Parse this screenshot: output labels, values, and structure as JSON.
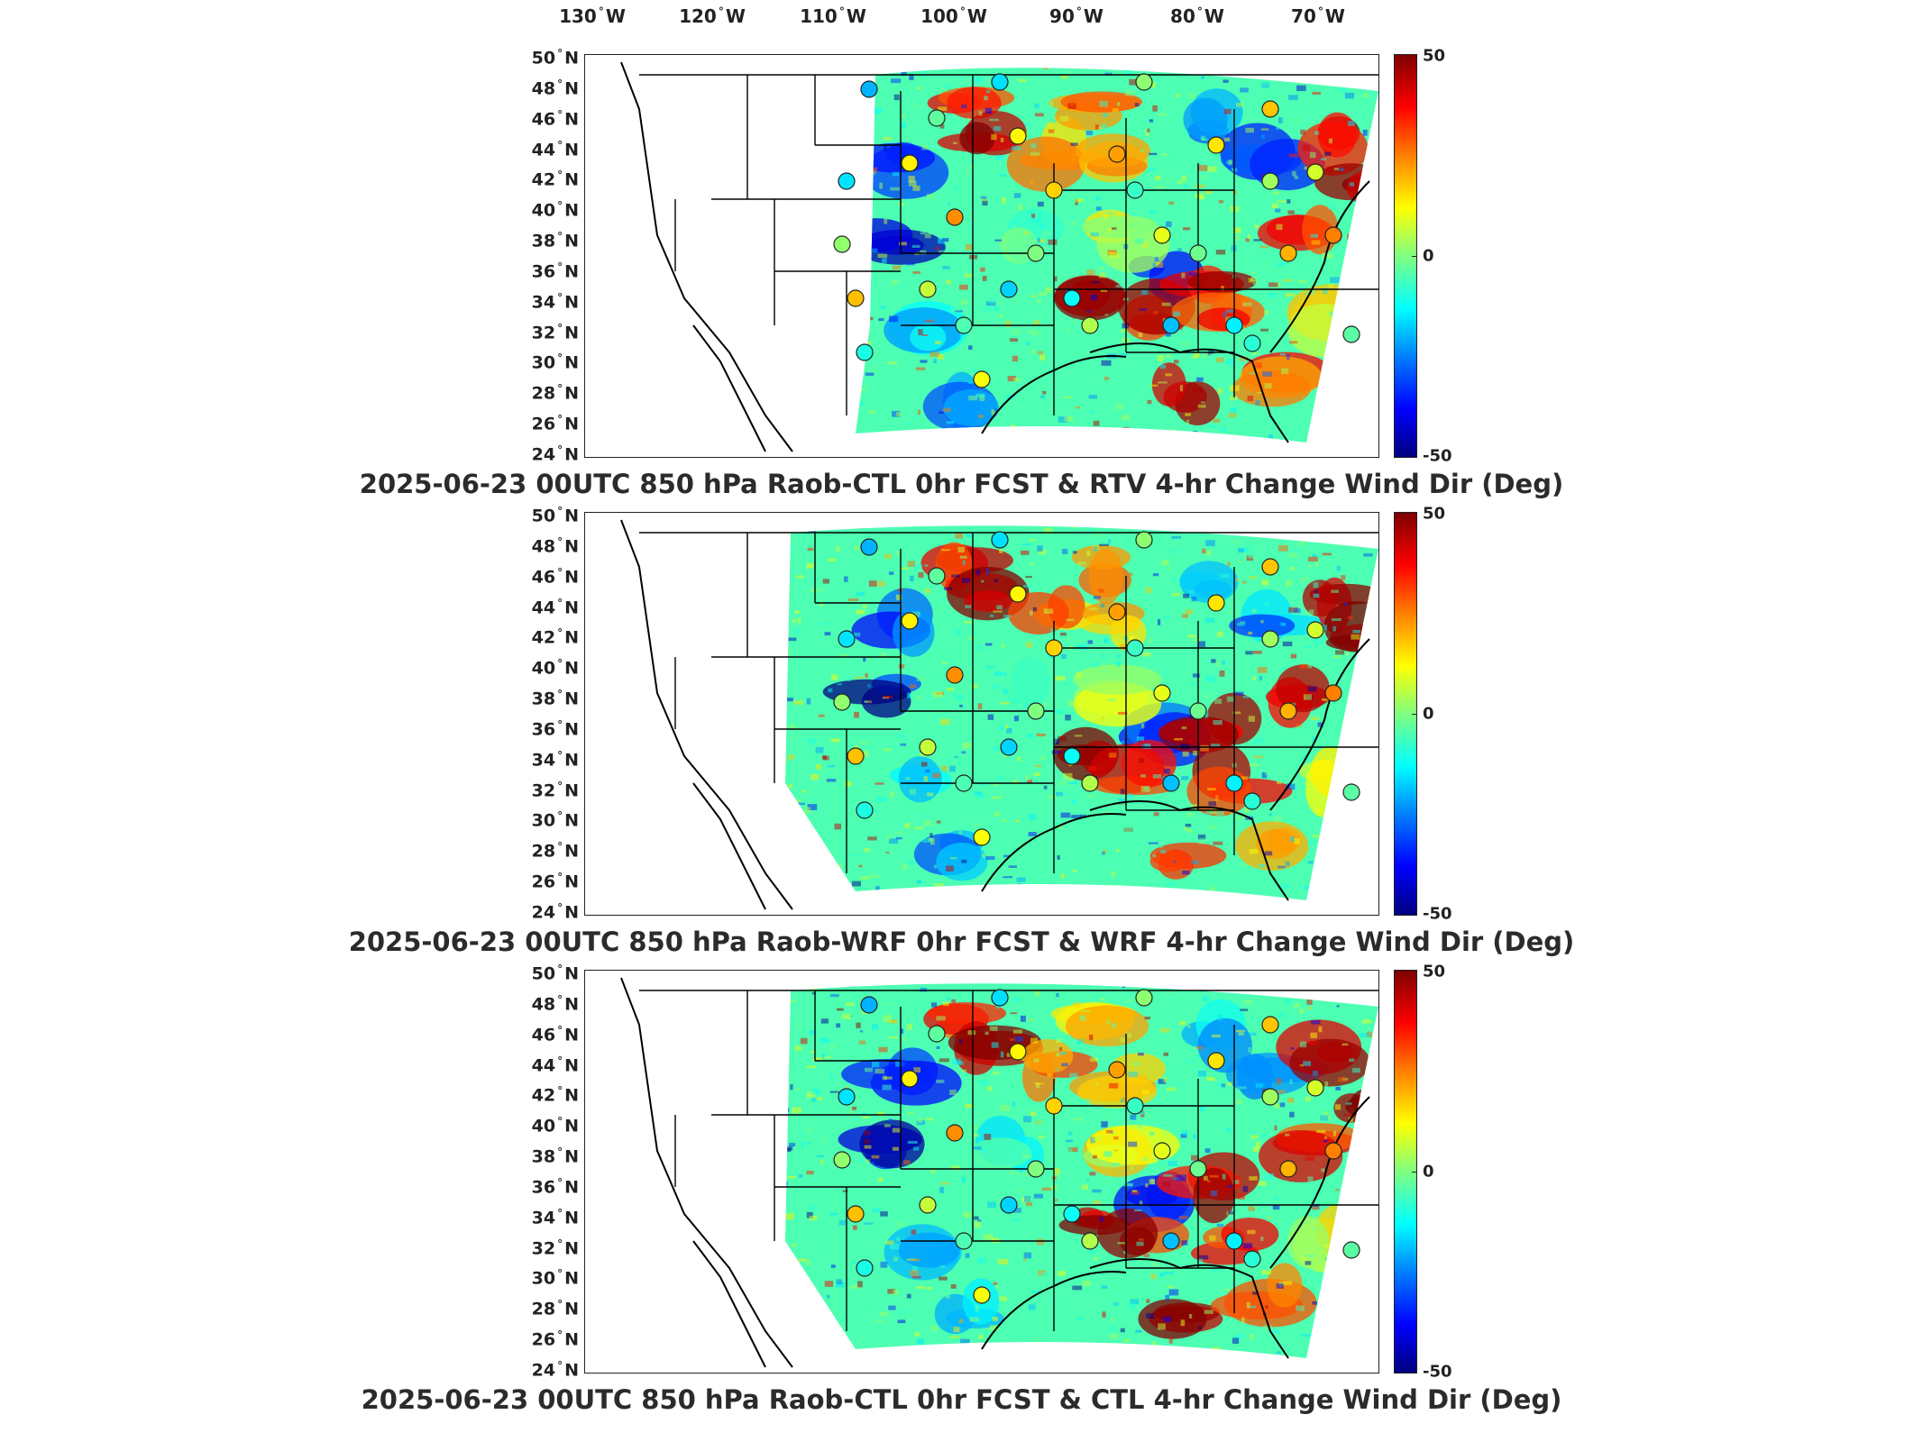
{
  "longitude_labels": [
    {
      "value": "130",
      "hemi": "W"
    },
    {
      "value": "120",
      "hemi": "W"
    },
    {
      "value": "110",
      "hemi": "W"
    },
    {
      "value": "100",
      "hemi": "W"
    },
    {
      "value": "90",
      "hemi": "W"
    },
    {
      "value": "80",
      "hemi": "W"
    },
    {
      "value": "70",
      "hemi": "W"
    }
  ],
  "latitude_labels": [
    "50",
    "48",
    "46",
    "44",
    "42",
    "40",
    "38",
    "36",
    "34",
    "32",
    "30",
    "28",
    "26",
    "24"
  ],
  "lat_hemi": "N",
  "degree_symbol": "°",
  "colorbar": {
    "max": "50",
    "mid": "0",
    "min": "-50",
    "colormap": "jet",
    "colors": [
      "#00007f",
      "#0000ff",
      "#007fff",
      "#00ffff",
      "#7fff7f",
      "#ffff00",
      "#ff7f00",
      "#ff0000",
      "#7f0000"
    ]
  },
  "panels": [
    {
      "title": "2025-06-23 00UTC 850 hPa Raob-CTL 0hr FCST & RTV 4-hr Change Wind Dir (Deg)",
      "seed": 11,
      "coverage": "partial"
    },
    {
      "title": "2025-06-23 00UTC 850 hPa Raob-WRF 0hr FCST & WRF 4-hr Change Wind Dir (Deg)",
      "seed": 23,
      "coverage": "full"
    },
    {
      "title": "2025-06-23 00UTC 850 hPa Raob-CTL 0hr FCST & CTL 4-hr Change Wind Dir (Deg)",
      "seed": 37,
      "coverage": "full"
    }
  ]
}
